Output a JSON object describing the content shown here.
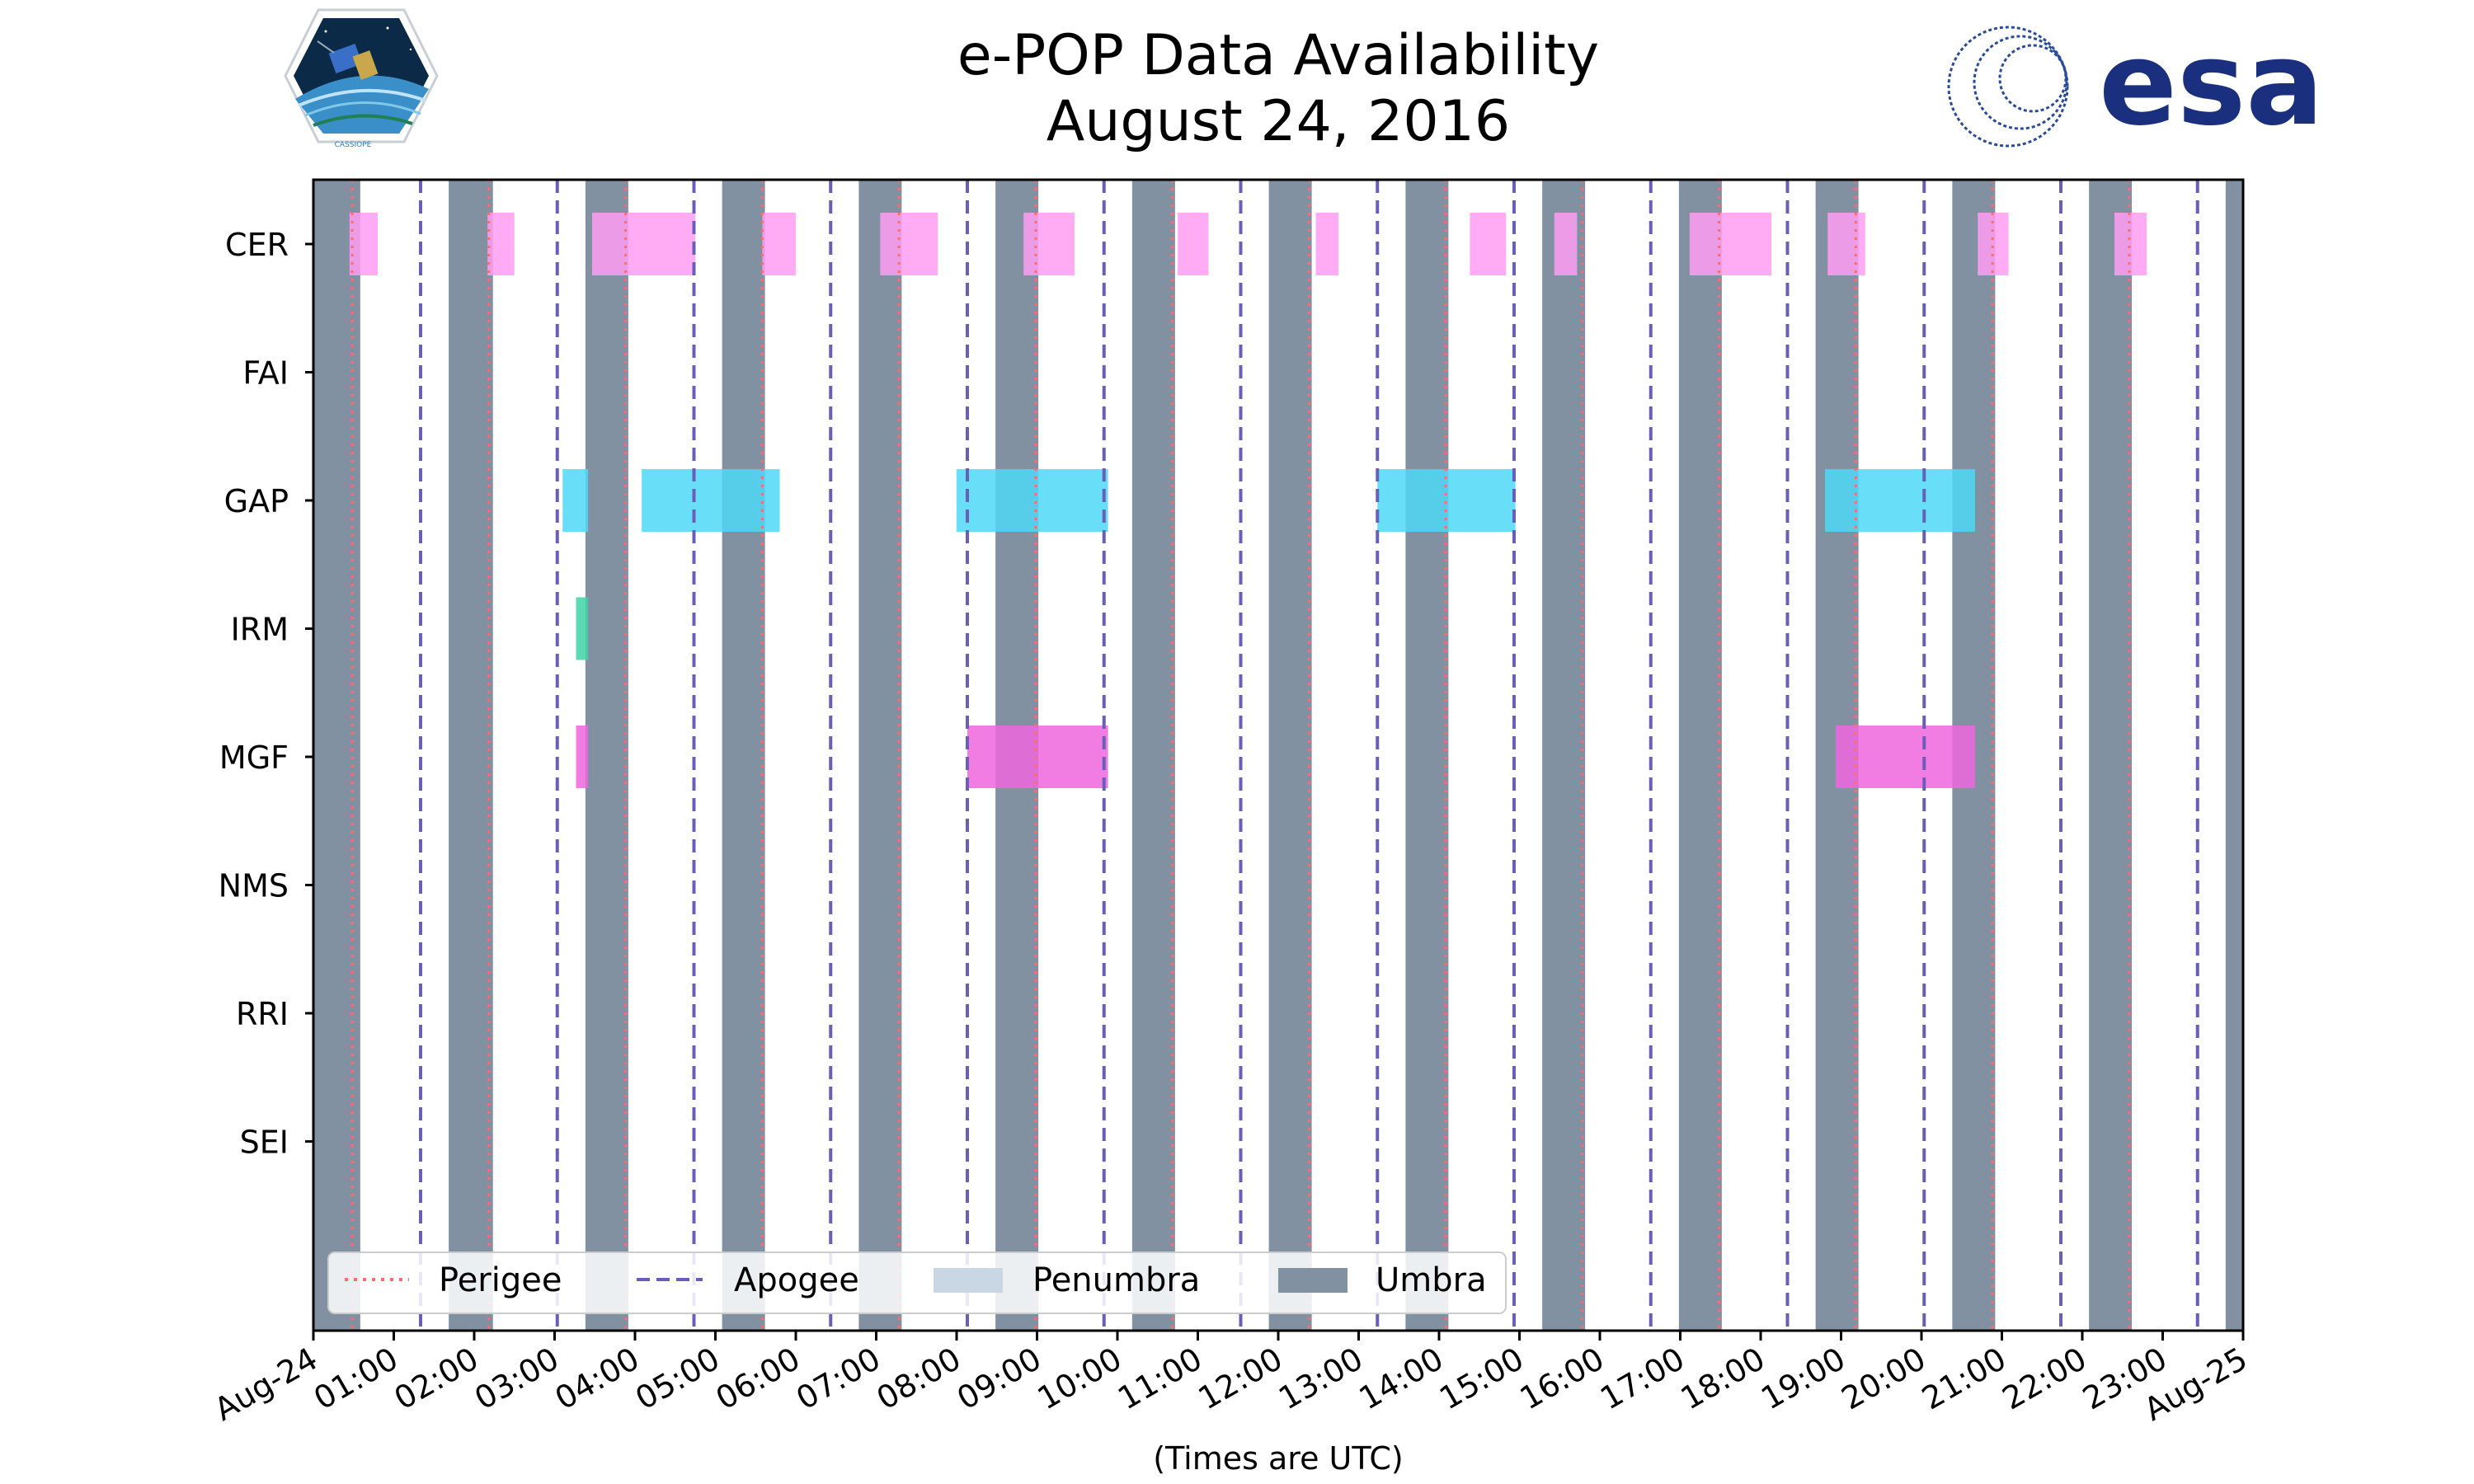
{
  "header": {
    "title_line1": "e-POP Data Availability",
    "title_line2": "August 24, 2016",
    "left_logo_text": "CASSIOPE",
    "right_logo_text": "esa"
  },
  "colors": {
    "umbra": "#8291a2",
    "penumbra": "#c9d6e4",
    "perigee": "#ff6b6b",
    "apogee": "#6a5fb8",
    "CER": "#ff9ef2",
    "GAP": "#4fd8f7",
    "IRM": "#3fd3a4",
    "MGF": "#ee66de"
  },
  "chart_data": {
    "type": "timeline",
    "title": "e-POP Data Availability\nAugust 24, 2016",
    "xlabel": "(Times are UTC)",
    "xlim": [
      "2016-08-24 00:00",
      "2016-08-25 00:00"
    ],
    "x_ticks": [
      "Aug-24",
      "01:00",
      "02:00",
      "03:00",
      "04:00",
      "05:00",
      "06:00",
      "07:00",
      "08:00",
      "09:00",
      "10:00",
      "11:00",
      "12:00",
      "13:00",
      "14:00",
      "15:00",
      "16:00",
      "17:00",
      "18:00",
      "19:00",
      "20:00",
      "21:00",
      "22:00",
      "23:00",
      "Aug-25"
    ],
    "instruments": [
      "CER",
      "FAI",
      "GAP",
      "IRM",
      "MGF",
      "NMS",
      "RRI",
      "SEI"
    ],
    "umbra": [
      [
        "00:00",
        "00:35"
      ],
      [
        "01:41",
        "02:14"
      ],
      [
        "03:23",
        "03:55"
      ],
      [
        "05:05",
        "05:37"
      ],
      [
        "06:47",
        "07:19"
      ],
      [
        "08:29",
        "09:01"
      ],
      [
        "10:11",
        "10:43"
      ],
      [
        "11:53",
        "12:25"
      ],
      [
        "13:35",
        "14:07"
      ],
      [
        "15:17",
        "15:49"
      ],
      [
        "16:59",
        "17:31"
      ],
      [
        "18:41",
        "19:13"
      ],
      [
        "20:23",
        "20:55"
      ],
      [
        "22:05",
        "22:37"
      ],
      [
        "23:47",
        "24:00"
      ]
    ],
    "perigee": [
      "00:29",
      "02:11",
      "03:53",
      "05:35",
      "07:17",
      "08:59",
      "10:41",
      "12:23",
      "14:05",
      "15:47",
      "17:29",
      "19:11",
      "20:53",
      "22:35"
    ],
    "apogee": [
      "01:20",
      "03:02",
      "04:44",
      "06:26",
      "08:08",
      "09:50",
      "11:32",
      "13:14",
      "14:56",
      "16:38",
      "18:20",
      "20:02",
      "21:44",
      "23:26"
    ],
    "availability": {
      "CER": [
        [
          "00:27",
          "00:48"
        ],
        [
          "02:10",
          "02:30"
        ],
        [
          "03:28",
          "04:45"
        ],
        [
          "05:35",
          "06:00"
        ],
        [
          "07:03",
          "07:46"
        ],
        [
          "08:50",
          "09:28"
        ],
        [
          "10:45",
          "11:08"
        ],
        [
          "12:28",
          "12:45"
        ],
        [
          "14:23",
          "14:50"
        ],
        [
          "15:26",
          "15:43"
        ],
        [
          "17:07",
          "18:08"
        ],
        [
          "18:50",
          "19:18"
        ],
        [
          "20:42",
          "21:05"
        ],
        [
          "22:24",
          "22:48"
        ]
      ],
      "FAI": [],
      "GAP": [
        [
          "03:06",
          "03:25"
        ],
        [
          "04:05",
          "05:48"
        ],
        [
          "08:00",
          "09:53"
        ],
        [
          "13:14",
          "14:57"
        ],
        [
          "18:48",
          "20:40"
        ]
      ],
      "IRM": [
        [
          "03:16",
          "03:25"
        ]
      ],
      "MGF": [
        [
          "03:16",
          "03:25"
        ],
        [
          "08:08",
          "09:53"
        ],
        [
          "18:56",
          "20:40"
        ]
      ],
      "NMS": [],
      "RRI": [],
      "SEI": []
    },
    "legend": {
      "position": "lower-left",
      "entries": [
        "Perigee",
        "Apogee",
        "Penumbra",
        "Umbra"
      ]
    }
  }
}
